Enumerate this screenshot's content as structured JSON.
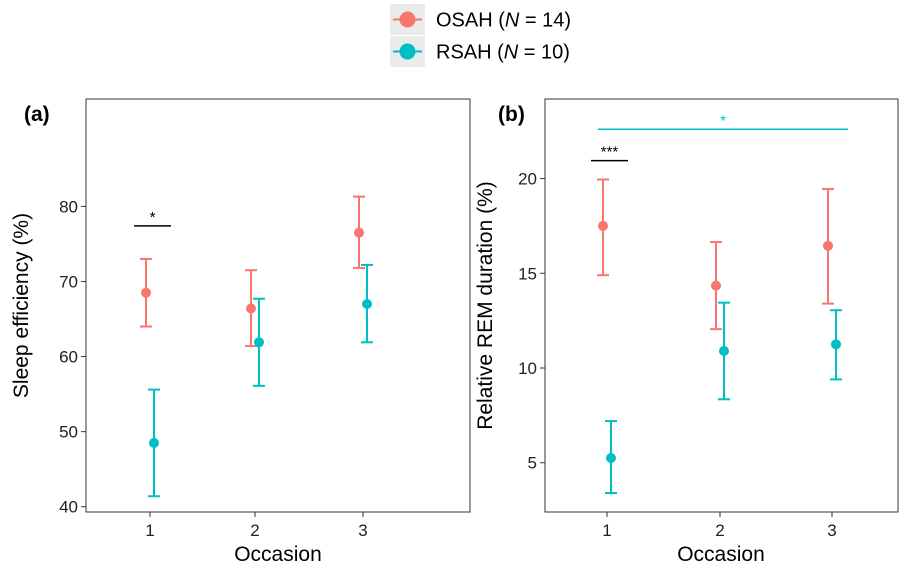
{
  "legend": {
    "entries": [
      {
        "prefix": "OSAH (",
        "var": "N",
        "suffix": " = 14)",
        "color": "#F8766D"
      },
      {
        "prefix": "RSAH (",
        "var": "N",
        "suffix": " = 10)",
        "color": "#00BFC4"
      }
    ]
  },
  "chart_data": [
    {
      "type": "scatter",
      "panel_label": "(a)",
      "xlabel": "Occasion",
      "ylabel": "Sleep efficiency (%)",
      "categories": [
        "1",
        "2",
        "3"
      ],
      "ylim": [
        39.3,
        94.3
      ],
      "yticks": [
        40,
        50,
        60,
        70,
        80
      ],
      "grid": false,
      "series": [
        {
          "name": "OSAH",
          "color": "#F8766D",
          "mean": [
            68.5,
            66.4,
            76.5
          ],
          "lower": [
            64.0,
            61.4,
            71.8
          ],
          "upper": [
            73.0,
            71.5,
            81.3
          ]
        },
        {
          "name": "RSAH",
          "color": "#00BFC4",
          "mean": [
            48.5,
            61.9,
            67.0
          ],
          "lower": [
            41.4,
            56.1,
            61.9
          ],
          "upper": [
            55.6,
            67.7,
            72.2
          ]
        }
      ],
      "annotations": [
        {
          "text": "*",
          "color": "#000000",
          "from": 1,
          "to": 1,
          "y": 77.4
        }
      ]
    },
    {
      "type": "scatter",
      "panel_label": "(b)",
      "xlabel": "Occasion",
      "ylabel": "Relative REM duration (%)",
      "categories": [
        "1",
        "2",
        "3"
      ],
      "ylim": [
        2.4,
        24.2
      ],
      "yticks": [
        5,
        10,
        15,
        20
      ],
      "grid": false,
      "series": [
        {
          "name": "OSAH",
          "color": "#F8766D",
          "mean": [
            17.5,
            14.35,
            16.45
          ],
          "lower": [
            14.9,
            12.05,
            13.4
          ],
          "upper": [
            19.95,
            16.65,
            19.45
          ]
        },
        {
          "name": "RSAH",
          "color": "#00BFC4",
          "mean": [
            5.25,
            10.9,
            11.25
          ],
          "lower": [
            3.4,
            8.35,
            9.4
          ],
          "upper": [
            7.2,
            13.45,
            13.05
          ]
        }
      ],
      "annotations": [
        {
          "text": "***",
          "color": "#000000",
          "from": 1,
          "to": 1,
          "y": 20.95
        },
        {
          "text": "*",
          "color": "#00BFC4",
          "from": 1,
          "to": 3,
          "y": 22.6
        }
      ]
    }
  ]
}
